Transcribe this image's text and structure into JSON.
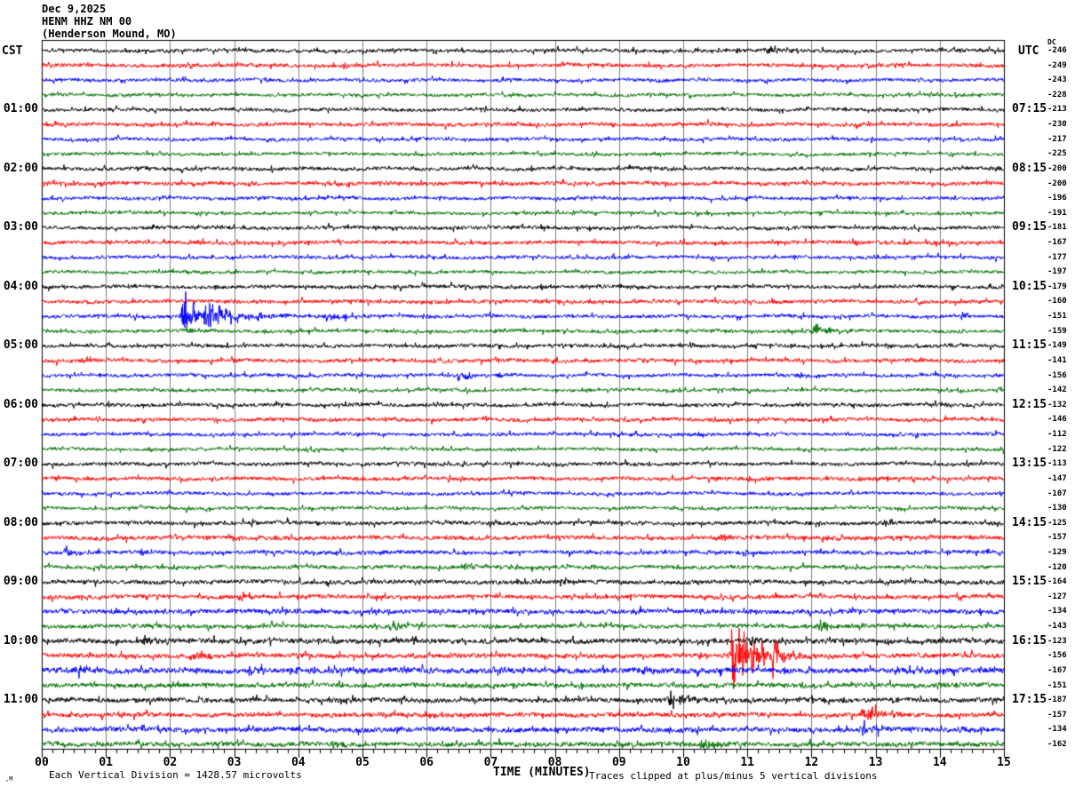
{
  "title": {
    "date": "Dec 9,2025",
    "station": "HENM HHZ NM 00",
    "location": "(Henderson Mound, MO)"
  },
  "left_axis": {
    "header": "CST"
  },
  "right_axis": {
    "header": "UTC",
    "dc_header": "DC"
  },
  "footer": {
    "scale_note": "Each Vertical Division = 1428.57 microvolts",
    "x_label": "TIME (MINUTES)",
    "clip_note": "Traces clipped at plus/minus 5 vertical divisions",
    "corner_mark": ",M"
  },
  "chart_data": {
    "type": "line",
    "variant": "helicorder-seismogram",
    "title": "HENM HHZ NM 00 (Henderson Mound, MO) Dec 9,2025",
    "xlabel": "TIME (MINUTES)",
    "x_range": [
      0,
      15
    ],
    "x_tick_labels": [
      "00",
      "01",
      "02",
      "03",
      "04",
      "05",
      "06",
      "07",
      "08",
      "09",
      "10",
      "11",
      "12",
      "13",
      "14",
      "15"
    ],
    "minor_ticks_per_minute": 6,
    "minutes_per_line": 15,
    "grid": true,
    "grid_color": "#808080",
    "clip_divisions": 5,
    "microvolts_per_division": 1428.57,
    "trace_colors": {
      "black": "#000000",
      "red": "#ff0000",
      "blue": "#0000ff",
      "green": "#007000"
    },
    "color_cycle": [
      "black",
      "red",
      "blue",
      "green"
    ],
    "rows": [
      {
        "color": "black",
        "cst": "",
        "utc": "",
        "dc": -246,
        "noise": 1.8,
        "events": [
          [
            10.8,
            0.25,
            3
          ],
          [
            11.25,
            0.7,
            5
          ]
        ]
      },
      {
        "color": "red",
        "cst": "",
        "utc": "",
        "dc": -249,
        "noise": 1.9,
        "events": []
      },
      {
        "color": "blue",
        "cst": "",
        "utc": "",
        "dc": -243,
        "noise": 1.7,
        "events": [
          [
            8.85,
            0.3,
            2.5
          ]
        ]
      },
      {
        "color": "green",
        "cst": "",
        "utc": "",
        "dc": -228,
        "noise": 1.6,
        "events": []
      },
      {
        "color": "black",
        "cst": "01:00",
        "utc": "07:15",
        "dc": -213,
        "noise": 1.8,
        "events": []
      },
      {
        "color": "red",
        "cst": "",
        "utc": "",
        "dc": -230,
        "noise": 1.9,
        "events": []
      },
      {
        "color": "blue",
        "cst": "",
        "utc": "",
        "dc": -217,
        "noise": 1.7,
        "events": []
      },
      {
        "color": "green",
        "cst": "",
        "utc": "",
        "dc": -225,
        "noise": 1.6,
        "events": []
      },
      {
        "color": "black",
        "cst": "02:00",
        "utc": "08:15",
        "dc": -200,
        "noise": 1.8,
        "events": [
          [
            9.1,
            0.6,
            3.5
          ]
        ]
      },
      {
        "color": "red",
        "cst": "",
        "utc": "",
        "dc": -200,
        "noise": 1.9,
        "events": []
      },
      {
        "color": "blue",
        "cst": "",
        "utc": "",
        "dc": -196,
        "noise": 1.7,
        "events": []
      },
      {
        "color": "green",
        "cst": "",
        "utc": "",
        "dc": -191,
        "noise": 1.6,
        "events": []
      },
      {
        "color": "black",
        "cst": "03:00",
        "utc": "09:15",
        "dc": -181,
        "noise": 1.8,
        "events": [
          [
            2.65,
            0.25,
            3.5
          ]
        ]
      },
      {
        "color": "red",
        "cst": "",
        "utc": "",
        "dc": -167,
        "noise": 1.9,
        "events": [
          [
            3.1,
            0.3,
            2.5
          ]
        ]
      },
      {
        "color": "blue",
        "cst": "",
        "utc": "",
        "dc": -177,
        "noise": 1.7,
        "events": []
      },
      {
        "color": "green",
        "cst": "",
        "utc": "",
        "dc": -197,
        "noise": 1.6,
        "events": []
      },
      {
        "color": "black",
        "cst": "04:00",
        "utc": "10:15",
        "dc": -179,
        "noise": 1.8,
        "events": [
          [
            9.1,
            0.4,
            3
          ]
        ]
      },
      {
        "color": "red",
        "cst": "",
        "utc": "",
        "dc": -160,
        "noise": 1.9,
        "events": []
      },
      {
        "color": "blue",
        "cst": "",
        "utc": "",
        "dc": -151,
        "noise": 1.8,
        "events": [
          [
            2.15,
            0.35,
            40
          ],
          [
            2.5,
            1.2,
            14
          ],
          [
            4.4,
            0.7,
            6
          ],
          [
            5.9,
            0.4,
            4
          ],
          [
            14.3,
            0.6,
            5
          ]
        ]
      },
      {
        "color": "green",
        "cst": "",
        "utc": "",
        "dc": -159,
        "noise": 1.7,
        "events": [
          [
            2.2,
            0.3,
            5
          ],
          [
            12.0,
            0.4,
            11
          ]
        ]
      },
      {
        "color": "black",
        "cst": "05:00",
        "utc": "11:15",
        "dc": -149,
        "noise": 1.8,
        "events": []
      },
      {
        "color": "red",
        "cst": "",
        "utc": "",
        "dc": -141,
        "noise": 1.9,
        "events": []
      },
      {
        "color": "blue",
        "cst": "",
        "utc": "",
        "dc": -156,
        "noise": 1.7,
        "events": [
          [
            6.45,
            0.55,
            8
          ],
          [
            7.1,
            0.3,
            6
          ]
        ]
      },
      {
        "color": "green",
        "cst": "",
        "utc": "",
        "dc": -142,
        "noise": 1.6,
        "events": []
      },
      {
        "color": "black",
        "cst": "06:00",
        "utc": "12:15",
        "dc": -132,
        "noise": 1.8,
        "events": []
      },
      {
        "color": "red",
        "cst": "",
        "utc": "",
        "dc": -146,
        "noise": 1.9,
        "events": []
      },
      {
        "color": "blue",
        "cst": "",
        "utc": "",
        "dc": -112,
        "noise": 1.7,
        "events": []
      },
      {
        "color": "green",
        "cst": "",
        "utc": "",
        "dc": -122,
        "noise": 1.6,
        "events": []
      },
      {
        "color": "black",
        "cst": "07:00",
        "utc": "13:15",
        "dc": -113,
        "noise": 1.8,
        "events": []
      },
      {
        "color": "red",
        "cst": "",
        "utc": "",
        "dc": -147,
        "noise": 1.9,
        "events": []
      },
      {
        "color": "blue",
        "cst": "",
        "utc": "",
        "dc": -107,
        "noise": 1.7,
        "events": []
      },
      {
        "color": "green",
        "cst": "",
        "utc": "",
        "dc": -130,
        "noise": 1.6,
        "events": []
      },
      {
        "color": "black",
        "cst": "08:00",
        "utc": "14:15",
        "dc": -125,
        "noise": 2.0,
        "events": []
      },
      {
        "color": "red",
        "cst": "",
        "utc": "",
        "dc": -157,
        "noise": 2.1,
        "events": [
          [
            10.55,
            0.35,
            7
          ]
        ]
      },
      {
        "color": "blue",
        "cst": "",
        "utc": "",
        "dc": -129,
        "noise": 2.0,
        "events": [
          [
            0.3,
            0.5,
            7
          ],
          [
            10.85,
            0.3,
            5
          ],
          [
            12.3,
            0.3,
            5
          ]
        ]
      },
      {
        "color": "green",
        "cst": "",
        "utc": "",
        "dc": -120,
        "noise": 1.9,
        "events": [
          [
            6.55,
            0.3,
            7
          ]
        ]
      },
      {
        "color": "black",
        "cst": "09:00",
        "utc": "15:15",
        "dc": -164,
        "noise": 2.1,
        "events": [
          [
            7.35,
            0.3,
            5
          ],
          [
            8.05,
            0.3,
            5
          ]
        ]
      },
      {
        "color": "red",
        "cst": "",
        "utc": "",
        "dc": -127,
        "noise": 2.1,
        "events": [
          [
            3.05,
            0.4,
            5
          ]
        ]
      },
      {
        "color": "blue",
        "cst": "",
        "utc": "",
        "dc": -134,
        "noise": 2.3,
        "events": [
          [
            9.0,
            0.6,
            4
          ]
        ]
      },
      {
        "color": "green",
        "cst": "",
        "utc": "",
        "dc": -143,
        "noise": 2.1,
        "events": [
          [
            5.4,
            0.5,
            9
          ],
          [
            12.05,
            0.4,
            11
          ]
        ]
      },
      {
        "color": "black",
        "cst": "10:00",
        "utc": "16:15",
        "dc": -123,
        "noise": 2.5,
        "events": [
          [
            1.55,
            0.4,
            5
          ],
          [
            5.75,
            0.15,
            6
          ],
          [
            11.0,
            0.4,
            5
          ]
        ]
      },
      {
        "color": "red",
        "cst": "",
        "utc": "",
        "dc": -156,
        "noise": 2.3,
        "events": [
          [
            2.3,
            0.5,
            8
          ],
          [
            6.9,
            0.3,
            5
          ],
          [
            10.7,
            1.0,
            34
          ],
          [
            11.35,
            0.45,
            26
          ]
        ]
      },
      {
        "color": "blue",
        "cst": "",
        "utc": "",
        "dc": -167,
        "noise": 2.8,
        "events": [
          [
            0.5,
            0.6,
            6
          ],
          [
            3.2,
            0.6,
            5
          ],
          [
            7.0,
            0.5,
            5
          ],
          [
            9.3,
            0.4,
            5
          ],
          [
            13.3,
            0.8,
            6
          ]
        ]
      },
      {
        "color": "green",
        "cst": "",
        "utc": "",
        "dc": -151,
        "noise": 2.3,
        "events": [
          [
            13.9,
            0.4,
            5
          ]
        ]
      },
      {
        "color": "black",
        "cst": "11:00",
        "utc": "17:15",
        "dc": -187,
        "noise": 2.3,
        "events": [
          [
            9.7,
            0.6,
            13
          ],
          [
            11.5,
            0.4,
            5
          ]
        ]
      },
      {
        "color": "red",
        "cst": "",
        "utc": "",
        "dc": -157,
        "noise": 2.3,
        "events": [
          [
            1.15,
            0.3,
            4
          ],
          [
            12.75,
            0.7,
            10
          ]
        ]
      },
      {
        "color": "blue",
        "cst": "",
        "utc": "",
        "dc": -134,
        "noise": 2.5,
        "events": [
          [
            12.75,
            0.4,
            10
          ],
          [
            14.2,
            0.4,
            5
          ]
        ]
      },
      {
        "color": "green",
        "cst": "",
        "utc": "",
        "dc": -162,
        "noise": 2.3,
        "events": [
          [
            0.8,
            0.3,
            5
          ],
          [
            4.5,
            0.3,
            6
          ],
          [
            10.25,
            0.4,
            9
          ]
        ]
      }
    ]
  }
}
